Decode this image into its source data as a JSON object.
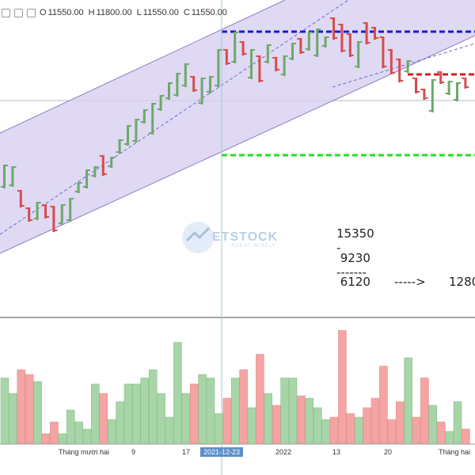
{
  "header": {
    "icons": [
      "settings-icon",
      "close-icon",
      "square-icon"
    ],
    "open_label": "O",
    "open_value": "11550.00",
    "high_label": "H",
    "high_value": "11800.00",
    "low_label": "L",
    "low_value": "11550.00",
    "close_label": "C",
    "close_value": "11550.00"
  },
  "annotations": {
    "line1": "15350",
    "line2": "-",
    "line3": " 9230",
    "line4": "-------",
    "line5": " 6120",
    "line6": "----->",
    "line7": "1280"
  },
  "watermark": {
    "text": "ETSTOCK",
    "subtext": "INVEST WISELY"
  },
  "x_axis": {
    "labels": [
      "Tháng mười hai",
      "9",
      "17",
      "2021-12-23",
      "2022",
      "13",
      "20",
      "Tháng hai"
    ],
    "highlighted": "2021-12-23"
  },
  "colors": {
    "up": "#6aa96a",
    "down": "#d84b4b",
    "vol_up": "#a8d5a8",
    "vol_down": "#f5a4a4",
    "channel_fill": "#c9bfe8",
    "resistance": "#1a1acc",
    "mid_level": "#d01f1f",
    "support": "#22dd22",
    "crosshair": "#9ec8d8"
  },
  "chart_data": {
    "type": "ohlc-bars-with-volume",
    "bars": [
      [
        0,
        "up"
      ],
      [
        1,
        "up"
      ],
      [
        2,
        "down"
      ],
      [
        3,
        "down"
      ],
      [
        4,
        "up"
      ],
      [
        5,
        "down"
      ],
      [
        6,
        "down"
      ],
      [
        7,
        "up"
      ],
      [
        8,
        "up"
      ],
      [
        9,
        "up"
      ],
      [
        10,
        "up"
      ],
      [
        11,
        "up"
      ],
      [
        12,
        "down"
      ],
      [
        13,
        "up"
      ],
      [
        14,
        "up"
      ],
      [
        15,
        "up"
      ],
      [
        16,
        "up"
      ],
      [
        17,
        "up"
      ],
      [
        18,
        "up"
      ],
      [
        19,
        "up"
      ],
      [
        20,
        "up"
      ],
      [
        21,
        "up"
      ],
      [
        22,
        "up"
      ],
      [
        23,
        "down"
      ],
      [
        24,
        "up"
      ],
      [
        25,
        "up"
      ],
      [
        26,
        "up"
      ],
      [
        27,
        "down"
      ],
      [
        28,
        "up"
      ],
      [
        29,
        "down"
      ],
      [
        30,
        "up"
      ],
      [
        31,
        "down"
      ],
      [
        32,
        "up"
      ],
      [
        33,
        "down"
      ],
      [
        34,
        "up"
      ],
      [
        35,
        "up"
      ],
      [
        36,
        "down"
      ],
      [
        37,
        "up"
      ],
      [
        38,
        "up"
      ],
      [
        39,
        "up"
      ],
      [
        40,
        "down"
      ],
      [
        41,
        "down"
      ],
      [
        42,
        "down"
      ],
      [
        43,
        "up"
      ],
      [
        44,
        "down"
      ],
      [
        45,
        "down"
      ],
      [
        46,
        "down"
      ],
      [
        47,
        "down"
      ],
      [
        48,
        "down"
      ],
      [
        49,
        "up"
      ],
      [
        50,
        "down"
      ],
      [
        51,
        "down"
      ],
      [
        52,
        "up"
      ],
      [
        53,
        "down"
      ],
      [
        54,
        "up"
      ],
      [
        55,
        "up"
      ],
      [
        56,
        "down"
      ],
      [
        57,
        "up"
      ]
    ],
    "volume_relative": [
      0.55,
      0.42,
      0.62,
      0.58,
      0.52,
      0.08,
      0.18,
      0.08,
      0.28,
      0.18,
      0.12,
      0.5,
      0.42,
      0.2,
      0.35,
      0.5,
      0.5,
      0.55,
      0.62,
      0.42,
      0.22,
      0.85,
      0.42,
      0.5,
      0.58,
      0.55,
      0.25,
      0.38,
      0.55,
      0.62,
      0.3,
      0.75,
      0.42,
      0.32,
      0.55,
      0.55,
      0.4,
      0.38,
      0.3,
      0.2,
      0.22,
      0.95,
      0.25,
      0.22,
      0.3,
      0.38,
      0.65,
      0.2,
      0.35,
      0.72,
      0.22,
      0.55,
      0.32,
      0.18,
      0.1,
      0.35,
      0.12,
      0.55
    ]
  }
}
